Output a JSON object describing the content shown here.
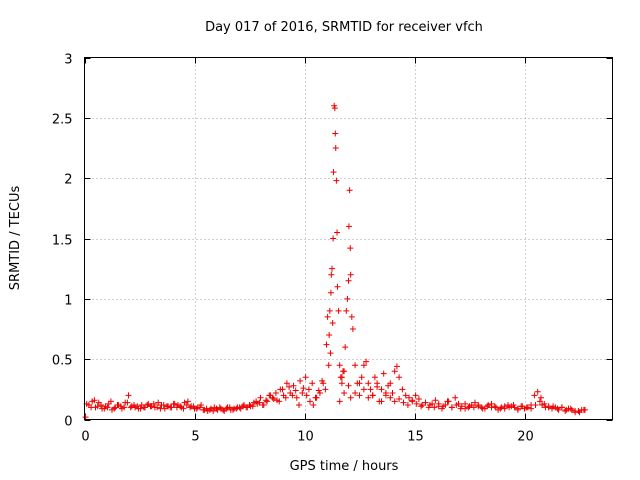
{
  "chart_data": {
    "type": "scatter",
    "title": "Day 017 of 2016, SRMTID for receiver vfch",
    "xlabel": "GPS time / hours",
    "ylabel": "SRMTID / TECUs",
    "xlim": [
      0,
      24
    ],
    "ylim": [
      0,
      3
    ],
    "xticks": [
      0,
      5,
      10,
      15,
      20
    ],
    "xtick_labels": [
      "0",
      "5",
      "10",
      "15",
      "20"
    ],
    "yticks": [
      0,
      0.5,
      1,
      1.5,
      2,
      2.5,
      3
    ],
    "ytick_labels": [
      "0",
      "0.5",
      "1",
      "1.5",
      "2",
      "2.5",
      "3"
    ],
    "grid": true,
    "marker": "+",
    "color": "#ee0000",
    "series": [
      {
        "name": "SRMTID",
        "x": [
          0.05,
          0.2,
          0.35,
          0.5,
          0.65,
          0.8,
          0.95,
          1.1,
          1.25,
          1.4,
          1.55,
          1.7,
          1.85,
          2.0,
          2.15,
          2.3,
          2.45,
          2.6,
          2.75,
          2.9,
          3.05,
          3.2,
          3.35,
          3.5,
          3.65,
          3.8,
          3.95,
          4.1,
          4.25,
          4.4,
          4.55,
          4.7,
          4.85,
          5.0,
          5.15,
          5.3,
          5.45,
          5.6,
          5.75,
          5.9,
          6.05,
          6.2,
          6.35,
          6.5,
          6.65,
          6.8,
          6.95,
          7.1,
          7.25,
          7.4,
          7.55,
          7.7,
          7.85,
          8.0,
          8.15,
          8.3,
          8.45,
          8.6,
          8.75,
          8.9,
          9.05,
          9.2,
          9.35,
          9.5,
          9.65,
          9.8,
          9.95,
          10.1,
          10.25,
          10.4,
          10.55,
          10.7,
          10.85,
          11.0,
          11.05,
          11.1,
          11.12,
          11.15,
          11.18,
          11.2,
          11.22,
          11.25,
          11.28,
          11.3,
          11.32,
          11.35,
          11.38,
          11.4,
          11.42,
          11.45,
          11.48,
          11.5,
          11.55,
          11.6,
          11.65,
          11.7,
          11.75,
          11.8,
          11.85,
          11.9,
          11.95,
          12.0,
          12.02,
          12.05,
          12.08,
          12.1,
          12.15,
          12.2,
          12.3,
          12.4,
          12.5,
          12.6,
          12.7,
          12.8,
          12.9,
          13.0,
          13.1,
          13.2,
          13.3,
          13.4,
          13.5,
          13.6,
          13.7,
          13.8,
          13.9,
          14.0,
          14.1,
          14.2,
          14.3,
          14.45,
          14.6,
          14.75,
          14.9,
          15.05,
          15.2,
          15.35,
          15.5,
          15.65,
          15.8,
          15.95,
          16.1,
          16.25,
          16.4,
          16.55,
          16.7,
          16.85,
          17.0,
          17.15,
          17.3,
          17.45,
          17.6,
          17.75,
          17.9,
          18.05,
          18.2,
          18.35,
          18.5,
          18.65,
          18.8,
          18.95,
          19.1,
          19.25,
          19.4,
          19.55,
          19.7,
          19.85,
          20.0,
          20.15,
          20.3,
          20.45,
          20.6,
          20.7,
          20.8,
          20.95,
          21.1,
          21.25,
          21.4,
          21.55,
          21.7,
          21.85,
          22.0,
          22.15,
          22.3,
          22.45,
          22.6,
          22.75,
          0.1,
          0.3,
          0.45,
          0.6,
          0.75,
          0.9,
          1.05,
          1.2,
          1.35,
          1.5,
          1.65,
          1.8,
          1.95,
          2.1,
          2.25,
          2.4,
          2.55,
          2.7,
          2.85,
          3.0,
          3.15,
          3.3,
          3.45,
          3.6,
          3.75,
          3.9,
          4.05,
          4.2,
          4.35,
          4.5,
          4.65,
          4.8,
          4.95,
          5.1,
          5.25,
          5.4,
          5.55,
          5.7,
          5.85,
          6.0,
          6.15,
          6.3,
          6.45,
          6.6,
          6.75,
          6.9,
          7.05,
          7.2,
          7.35,
          7.5,
          7.65,
          7.8,
          7.95,
          8.1,
          8.25,
          8.4,
          8.55,
          8.7,
          8.85,
          9.0,
          9.15,
          9.3,
          9.45,
          9.6,
          9.75,
          9.9,
          10.05,
          10.2,
          10.35,
          10.5,
          10.65,
          10.8,
          10.95,
          11.6,
          11.7,
          11.8,
          12.0,
          12.1,
          12.3,
          12.5,
          12.7,
          12.9,
          13.1,
          13.3,
          13.5,
          13.7,
          13.9,
          14.1,
          14.3,
          14.5,
          14.7,
          14.9,
          15.1,
          15.3,
          15.5,
          15.7,
          15.9,
          16.1,
          16.3,
          16.5,
          16.7,
          16.9,
          17.1,
          17.3,
          17.5,
          17.7,
          17.9,
          18.1,
          18.3,
          18.5,
          18.7,
          18.9,
          19.1,
          19.3,
          19.5,
          19.7,
          19.9,
          20.1,
          20.3,
          20.5,
          20.75,
          20.9,
          21.1,
          21.3,
          21.5,
          21.7,
          21.9,
          22.1,
          22.3,
          22.5,
          22.7
        ],
        "y": [
          0.02,
          0.12,
          0.15,
          0.1,
          0.14,
          0.09,
          0.11,
          0.13,
          0.08,
          0.1,
          0.12,
          0.09,
          0.14,
          0.2,
          0.11,
          0.1,
          0.09,
          0.12,
          0.1,
          0.13,
          0.11,
          0.1,
          0.14,
          0.12,
          0.09,
          0.11,
          0.1,
          0.13,
          0.12,
          0.1,
          0.14,
          0.15,
          0.11,
          0.09,
          0.1,
          0.12,
          0.08,
          0.07,
          0.09,
          0.1,
          0.08,
          0.09,
          0.07,
          0.1,
          0.08,
          0.09,
          0.1,
          0.09,
          0.12,
          0.1,
          0.11,
          0.14,
          0.13,
          0.18,
          0.12,
          0.15,
          0.2,
          0.17,
          0.16,
          0.25,
          0.2,
          0.3,
          0.22,
          0.28,
          0.18,
          0.32,
          0.26,
          0.2,
          0.15,
          0.12,
          0.18,
          0.22,
          0.3,
          0.62,
          0.85,
          0.45,
          0.7,
          0.9,
          0.55,
          1.05,
          1.2,
          1.25,
          0.8,
          1.5,
          2.05,
          2.6,
          2.58,
          2.37,
          2.25,
          1.98,
          1.55,
          1.1,
          0.9,
          0.45,
          0.35,
          0.3,
          0.4,
          0.22,
          0.6,
          0.9,
          1.0,
          1.15,
          1.6,
          1.9,
          1.42,
          1.2,
          0.85,
          0.75,
          0.45,
          0.3,
          0.2,
          0.35,
          0.45,
          0.48,
          0.3,
          0.25,
          0.2,
          0.35,
          0.3,
          0.15,
          0.25,
          0.38,
          0.2,
          0.28,
          0.3,
          0.22,
          0.4,
          0.44,
          0.35,
          0.25,
          0.2,
          0.18,
          0.15,
          0.2,
          0.17,
          0.12,
          0.14,
          0.1,
          0.13,
          0.16,
          0.11,
          0.09,
          0.12,
          0.15,
          0.1,
          0.18,
          0.13,
          0.11,
          0.09,
          0.1,
          0.12,
          0.14,
          0.11,
          0.1,
          0.09,
          0.12,
          0.1,
          0.11,
          0.08,
          0.1,
          0.09,
          0.12,
          0.11,
          0.1,
          0.08,
          0.11,
          0.09,
          0.1,
          0.12,
          0.2,
          0.23,
          0.15,
          0.12,
          0.1,
          0.11,
          0.09,
          0.1,
          0.08,
          0.1,
          0.07,
          0.09,
          0.08,
          0.06,
          0.07,
          0.08,
          0.08,
          0.13,
          0.1,
          0.16,
          0.11,
          0.12,
          0.09,
          0.1,
          0.15,
          0.09,
          0.12,
          0.11,
          0.1,
          0.14,
          0.1,
          0.12,
          0.11,
          0.09,
          0.1,
          0.12,
          0.11,
          0.13,
          0.1,
          0.09,
          0.12,
          0.11,
          0.1,
          0.13,
          0.1,
          0.11,
          0.09,
          0.12,
          0.1,
          0.11,
          0.09,
          0.1,
          0.08,
          0.09,
          0.08,
          0.07,
          0.09,
          0.1,
          0.08,
          0.09,
          0.1,
          0.08,
          0.09,
          0.1,
          0.11,
          0.1,
          0.12,
          0.11,
          0.15,
          0.14,
          0.12,
          0.16,
          0.2,
          0.18,
          0.22,
          0.15,
          0.25,
          0.18,
          0.27,
          0.2,
          0.24,
          0.12,
          0.22,
          0.35,
          0.25,
          0.3,
          0.18,
          0.24,
          0.32,
          0.25,
          0.15,
          0.35,
          0.4,
          0.28,
          0.18,
          0.22,
          0.3,
          0.25,
          0.18,
          0.2,
          0.27,
          0.15,
          0.22,
          0.18,
          0.15,
          0.17,
          0.14,
          0.12,
          0.16,
          0.13,
          0.11,
          0.14,
          0.12,
          0.1,
          0.13,
          0.11,
          0.15,
          0.1,
          0.12,
          0.09,
          0.13,
          0.11,
          0.1,
          0.12,
          0.09,
          0.11,
          0.13,
          0.1,
          0.09,
          0.11,
          0.1,
          0.12,
          0.09,
          0.11,
          0.1,
          0.09,
          0.12,
          0.18,
          0.13,
          0.1,
          0.11,
          0.09,
          0.1,
          0.08,
          0.09,
          0.07,
          0.06,
          0.08
        ]
      }
    ]
  }
}
